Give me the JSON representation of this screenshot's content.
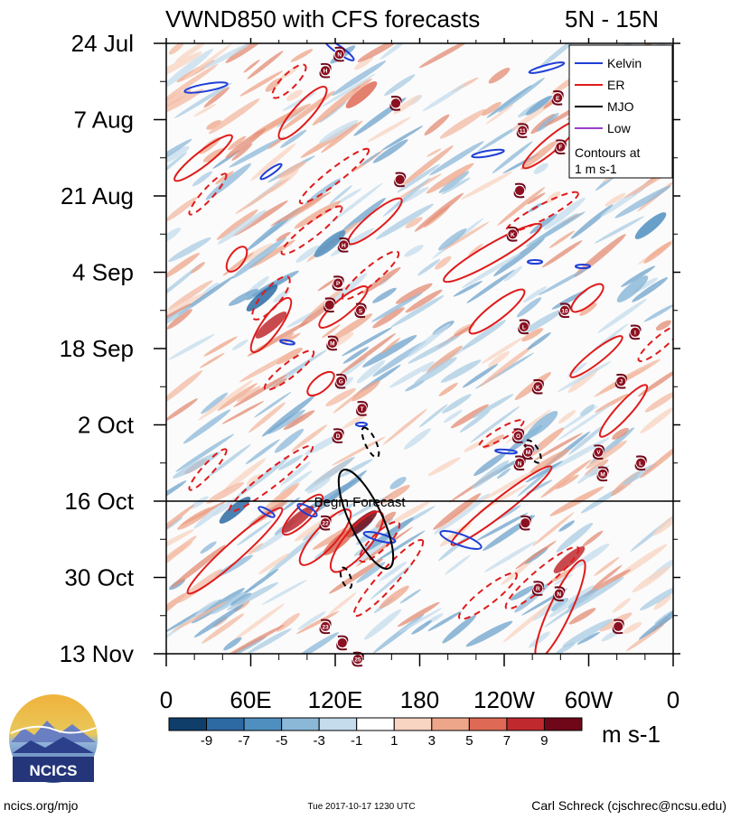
{
  "chart_data": {
    "type": "heatmap",
    "title": "VWND850 with CFS forecasts",
    "subtitle": "5N - 15N",
    "xlabel": "",
    "ylabel": "",
    "x_ticks": [
      "0",
      "60E",
      "120E",
      "180",
      "120W",
      "60W",
      "0"
    ],
    "x_range_deg": [
      0,
      360
    ],
    "y_ticks": [
      "24 Jul",
      "7 Aug",
      "21 Aug",
      "4 Sep",
      "18 Sep",
      "2 Oct",
      "16 Oct",
      "30 Oct",
      "13 Nov"
    ],
    "y_range_days": [
      0,
      112
    ],
    "forecast_start_day": 84,
    "forecast_label": "Begin Forecast",
    "legend": {
      "position": "top-right",
      "entries": [
        {
          "name": "Kelvin",
          "color": "#1f3fd6"
        },
        {
          "name": "ER",
          "color": "#e01b1b"
        },
        {
          "name": "MJO",
          "color": "#000000"
        },
        {
          "name": "Low",
          "color": "#9a3fc9"
        }
      ],
      "note_line1": "Contours at",
      "note_line2": "1 m s-1"
    },
    "colorbar": {
      "unit": "m s-1",
      "tick_labels": [
        "-9",
        "-7",
        "-5",
        "-3",
        "-1",
        "1",
        "3",
        "5",
        "7",
        "9"
      ],
      "colors": [
        "#103e6b",
        "#2d6aa3",
        "#4f8fc0",
        "#8cb8d8",
        "#c4dcec",
        "#ffffff",
        "#f8d4c2",
        "#eea68a",
        "#de6a55",
        "#c02a2f",
        "#6f0719"
      ]
    },
    "storms": [
      {
        "label": "H",
        "lon": 113,
        "day": 5
      },
      {
        "label": "N",
        "lon": 123,
        "day": 2
      },
      {
        "label": "",
        "lon": 163,
        "day": 11
      },
      {
        "label": "E",
        "lon": 278,
        "day": 10
      },
      {
        "label": "11",
        "lon": 253,
        "day": 16
      },
      {
        "label": "F",
        "lon": 280,
        "day": 19
      },
      {
        "label": "",
        "lon": 166,
        "day": 25
      },
      {
        "label": "",
        "lon": 251,
        "day": 27
      },
      {
        "label": "K",
        "lon": 246,
        "day": 35
      },
      {
        "label": "H",
        "lon": 126,
        "day": 37
      },
      {
        "label": "P",
        "lon": 122,
        "day": 44
      },
      {
        "label": "",
        "lon": 116,
        "day": 48
      },
      {
        "label": "S",
        "lon": 138,
        "day": 49
      },
      {
        "label": "L",
        "lon": 254,
        "day": 52
      },
      {
        "label": "10",
        "lon": 283,
        "day": 49
      },
      {
        "label": "I",
        "lon": 333,
        "day": 53
      },
      {
        "label": "M",
        "lon": 118,
        "day": 55
      },
      {
        "label": "G",
        "lon": 124,
        "day": 62
      },
      {
        "label": "K",
        "lon": 264,
        "day": 63
      },
      {
        "label": "J",
        "lon": 323,
        "day": 62
      },
      {
        "label": "T",
        "lon": 139,
        "day": 67
      },
      {
        "label": "D",
        "lon": 122,
        "day": 72
      },
      {
        "label": "O",
        "lon": 250,
        "day": 72
      },
      {
        "label": "M",
        "lon": 257,
        "day": 75
      },
      {
        "label": "N",
        "lon": 251,
        "day": 77
      },
      {
        "label": "L",
        "lon": 337,
        "day": 77
      },
      {
        "label": "V",
        "lon": 307,
        "day": 75
      },
      {
        "label": "M",
        "lon": 310,
        "day": 79
      },
      {
        "label": "22",
        "lon": 113,
        "day": 88
      },
      {
        "label": "",
        "lon": 255,
        "day": 88
      },
      {
        "label": "R",
        "lon": 264,
        "day": 100
      },
      {
        "label": "N",
        "lon": 279,
        "day": 101
      },
      {
        "label": "23",
        "lon": 113,
        "day": 107
      },
      {
        "label": "",
        "lon": 321,
        "day": 107
      },
      {
        "label": "",
        "lon": 125,
        "day": 110
      },
      {
        "label": "25",
        "lon": 136,
        "day": 113
      }
    ]
  },
  "logo": {
    "org": "NCICS"
  },
  "footer": {
    "left": "ncics.org/mjo",
    "center": "Tue 2017-10-17 1230 UTC",
    "right": "Carl Schreck (cjschrec@ncsu.edu)"
  }
}
